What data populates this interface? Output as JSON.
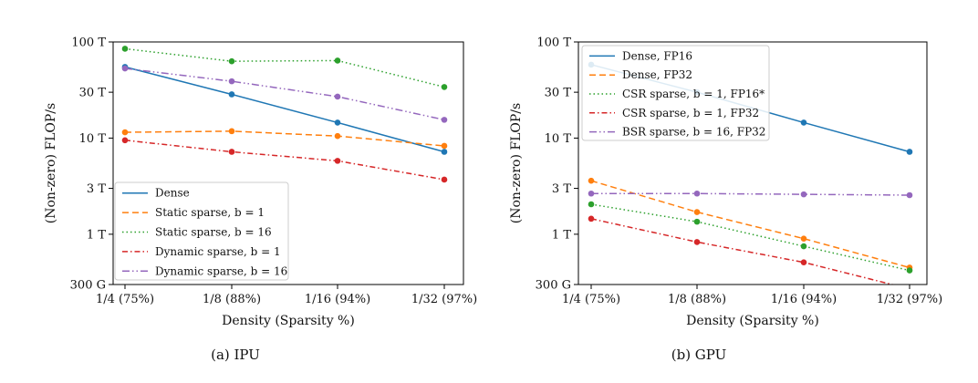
{
  "chart_data": [
    {
      "type": "line",
      "caption": "(a) IPU",
      "xlabel": "Density (Sparsity %)",
      "ylabel": "(Non-zero) FLOP/s",
      "categories": [
        "1/4 (75%)",
        "1/8 (88%)",
        "1/16 (94%)",
        "1/32 (97%)"
      ],
      "yscale": "log",
      "ylim": [
        300000000000.0,
        100000000000000.0
      ],
      "yticks": [
        300000000000.0,
        1000000000000.0,
        3000000000000.0,
        10000000000000.0,
        30000000000000.0,
        100000000000000.0
      ],
      "ytick_labels": [
        "300 G",
        "1 T",
        "3 T",
        "10 T",
        "30 T",
        "100 T"
      ],
      "legend_position": "lower-left",
      "series": [
        {
          "name": "Dense",
          "color": "#1f77b4",
          "dash": "solid",
          "values": [
            55000000000000.0,
            28500000000000.0,
            14500000000000.0,
            7200000000000.0
          ]
        },
        {
          "name": "Static sparse, b = 1",
          "color": "#ff7f0e",
          "dash": "dashed",
          "values": [
            11500000000000.0,
            11800000000000.0,
            10500000000000.0,
            8300000000000.0
          ]
        },
        {
          "name": "Static sparse, b = 16",
          "color": "#2ca02c",
          "dash": "dotted",
          "values": [
            85000000000000.0,
            63000000000000.0,
            64000000000000.0,
            34000000000000.0
          ]
        },
        {
          "name": "Dynamic sparse, b = 1",
          "color": "#d62728",
          "dash": "dashdot",
          "values": [
            9500000000000.0,
            7200000000000.0,
            5800000000000.0,
            3700000000000.0
          ]
        },
        {
          "name": "Dynamic sparse, b = 16",
          "color": "#9467bd",
          "dash": "dashdotted",
          "values": [
            53000000000000.0,
            39000000000000.0,
            27000000000000.0,
            15500000000000.0
          ]
        }
      ]
    },
    {
      "type": "line",
      "caption": "(b) GPU",
      "xlabel": "Density (Sparsity %)",
      "ylabel": "(Non-zero) FLOP/s",
      "categories": [
        "1/4 (75%)",
        "1/8 (88%)",
        "1/16 (94%)",
        "1/32 (97%)"
      ],
      "yscale": "log",
      "ylim": [
        300000000000.0,
        100000000000000.0
      ],
      "yticks": [
        300000000000.0,
        1000000000000.0,
        3000000000000.0,
        10000000000000.0,
        30000000000000.0,
        100000000000000.0
      ],
      "ytick_labels": [
        "300 G",
        "1 T",
        "3 T",
        "10 T",
        "30 T",
        "100 T"
      ],
      "legend_position": "upper-left",
      "series": [
        {
          "name": "Dense, FP16",
          "color": "#1f77b4",
          "dash": "solid",
          "values": [
            58000000000000.0,
            30000000000000.0,
            14500000000000.0,
            7200000000000.0
          ]
        },
        {
          "name": "Dense, FP32",
          "color": "#ff7f0e",
          "dash": "dashed",
          "values": [
            3600000000000.0,
            1700000000000.0,
            900000000000.0,
            450000000000.0
          ]
        },
        {
          "name": "CSR sparse, b = 1, FP16*",
          "color": "#2ca02c",
          "dash": "dotted",
          "values": [
            2050000000000.0,
            1350000000000.0,
            750000000000.0,
            420000000000.0
          ]
        },
        {
          "name": "CSR sparse, b = 1, FP32",
          "color": "#d62728",
          "dash": "dashdot",
          "values": [
            1450000000000.0,
            830000000000.0,
            510000000000.0,
            270000000000.0
          ]
        },
        {
          "name": "BSR sparse, b = 16, FP32",
          "color": "#9467bd",
          "dash": "dashdotted",
          "values": [
            2650000000000.0,
            2650000000000.0,
            2600000000000.0,
            2550000000000.0
          ]
        }
      ]
    }
  ]
}
